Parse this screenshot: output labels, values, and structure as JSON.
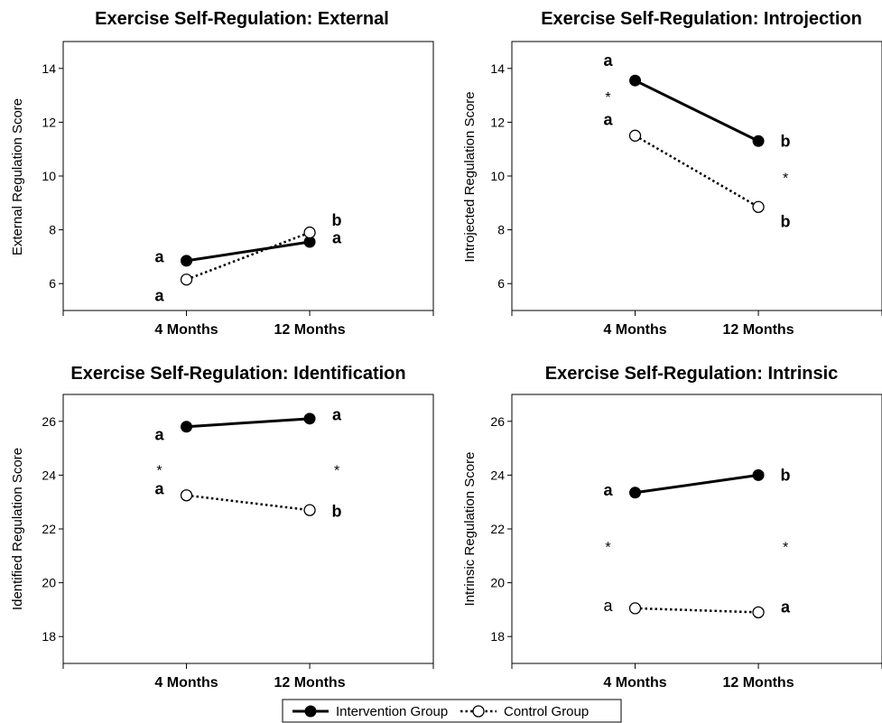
{
  "chart_data": [
    {
      "type": "line",
      "title": "Exercise Self-Regulation: External",
      "ylabel": "External Regulation Score",
      "xlabel": "",
      "categories": [
        "4 Months",
        "12 Months"
      ],
      "ylim": [
        5,
        15
      ],
      "yticks": [
        6,
        8,
        10,
        12,
        14
      ],
      "series": [
        {
          "name": "Intervention Group",
          "values": [
            6.85,
            7.55
          ]
        },
        {
          "name": "Control Group",
          "values": [
            6.15,
            7.9
          ]
        }
      ],
      "annotations": [
        {
          "text": "a",
          "category": 0,
          "y": 7.0,
          "side": "left",
          "weight": "bold"
        },
        {
          "text": "a",
          "category": 0,
          "y": 5.55,
          "side": "left",
          "weight": "bold"
        },
        {
          "text": "b",
          "category": 1,
          "y": 8.35,
          "side": "right",
          "weight": "bold"
        },
        {
          "text": "a",
          "category": 1,
          "y": 7.7,
          "side": "right",
          "weight": "bold"
        }
      ]
    },
    {
      "type": "line",
      "title": "Exercise Self-Regulation: Introjection",
      "ylabel": "Introjected Regulation Score",
      "xlabel": "",
      "categories": [
        "4 Months",
        "12 Months"
      ],
      "ylim": [
        5,
        15
      ],
      "yticks": [
        6,
        8,
        10,
        12,
        14
      ],
      "series": [
        {
          "name": "Intervention Group",
          "values": [
            13.55,
            11.3
          ]
        },
        {
          "name": "Control Group",
          "values": [
            11.5,
            8.85
          ]
        }
      ],
      "annotations": [
        {
          "text": "a",
          "category": 0,
          "y": 14.3,
          "side": "left",
          "weight": "bold"
        },
        {
          "text": "*",
          "category": 0,
          "y": 12.95,
          "side": "left",
          "weight": "normal"
        },
        {
          "text": "a",
          "category": 0,
          "y": 12.1,
          "side": "left",
          "weight": "bold"
        },
        {
          "text": "b",
          "category": 1,
          "y": 11.3,
          "side": "right",
          "weight": "bold"
        },
        {
          "text": "*",
          "category": 1,
          "y": 9.95,
          "side": "right",
          "weight": "normal"
        },
        {
          "text": "b",
          "category": 1,
          "y": 8.3,
          "side": "right",
          "weight": "bold"
        }
      ]
    },
    {
      "type": "line",
      "title": "Exercise Self-Regulation: Identification",
      "ylabel": "Identified Regulation Score",
      "xlabel": "",
      "categories": [
        "4 Months",
        "12 Months"
      ],
      "ylim": [
        17,
        27
      ],
      "yticks": [
        18,
        20,
        22,
        24,
        26
      ],
      "series": [
        {
          "name": "Intervention Group",
          "values": [
            25.8,
            26.1
          ]
        },
        {
          "name": "Control Group",
          "values": [
            23.25,
            22.7
          ]
        }
      ],
      "annotations": [
        {
          "text": "a",
          "category": 0,
          "y": 25.5,
          "side": "left",
          "weight": "bold"
        },
        {
          "text": "*",
          "category": 0,
          "y": 24.2,
          "side": "left",
          "weight": "normal"
        },
        {
          "text": "a",
          "category": 0,
          "y": 23.5,
          "side": "left",
          "weight": "bold"
        },
        {
          "text": "a",
          "category": 1,
          "y": 26.25,
          "side": "right",
          "weight": "bold"
        },
        {
          "text": "*",
          "category": 1,
          "y": 24.2,
          "side": "right",
          "weight": "normal"
        },
        {
          "text": "b",
          "category": 1,
          "y": 22.65,
          "side": "right",
          "weight": "bold"
        }
      ]
    },
    {
      "type": "line",
      "title": "Exercise Self-Regulation: Intrinsic",
      "ylabel": "Intrinsic Regulation Score",
      "xlabel": "",
      "categories": [
        "4 Months",
        "12 Months"
      ],
      "ylim": [
        17,
        27
      ],
      "yticks": [
        18,
        20,
        22,
        24,
        26
      ],
      "series": [
        {
          "name": "Intervention Group",
          "values": [
            23.35,
            24.0
          ]
        },
        {
          "name": "Control Group",
          "values": [
            19.05,
            18.9
          ]
        }
      ],
      "annotations": [
        {
          "text": "a",
          "category": 0,
          "y": 23.45,
          "side": "left",
          "weight": "bold"
        },
        {
          "text": "*",
          "category": 0,
          "y": 21.35,
          "side": "left",
          "weight": "normal"
        },
        {
          "text": "a",
          "category": 0,
          "y": 19.15,
          "side": "left",
          "weight": "normal"
        },
        {
          "text": "b",
          "category": 1,
          "y": 24.0,
          "side": "right",
          "weight": "bold"
        },
        {
          "text": "*",
          "category": 1,
          "y": 21.35,
          "side": "right",
          "weight": "normal"
        },
        {
          "text": "a",
          "category": 1,
          "y": 19.1,
          "side": "right",
          "weight": "bold"
        }
      ]
    }
  ],
  "legend": {
    "placement": "bottom-center",
    "items": [
      {
        "label": "Intervention Group",
        "marker": "filled-circle",
        "line": "solid"
      },
      {
        "label": "Control Group",
        "marker": "open-circle",
        "line": "dotted"
      }
    ]
  }
}
